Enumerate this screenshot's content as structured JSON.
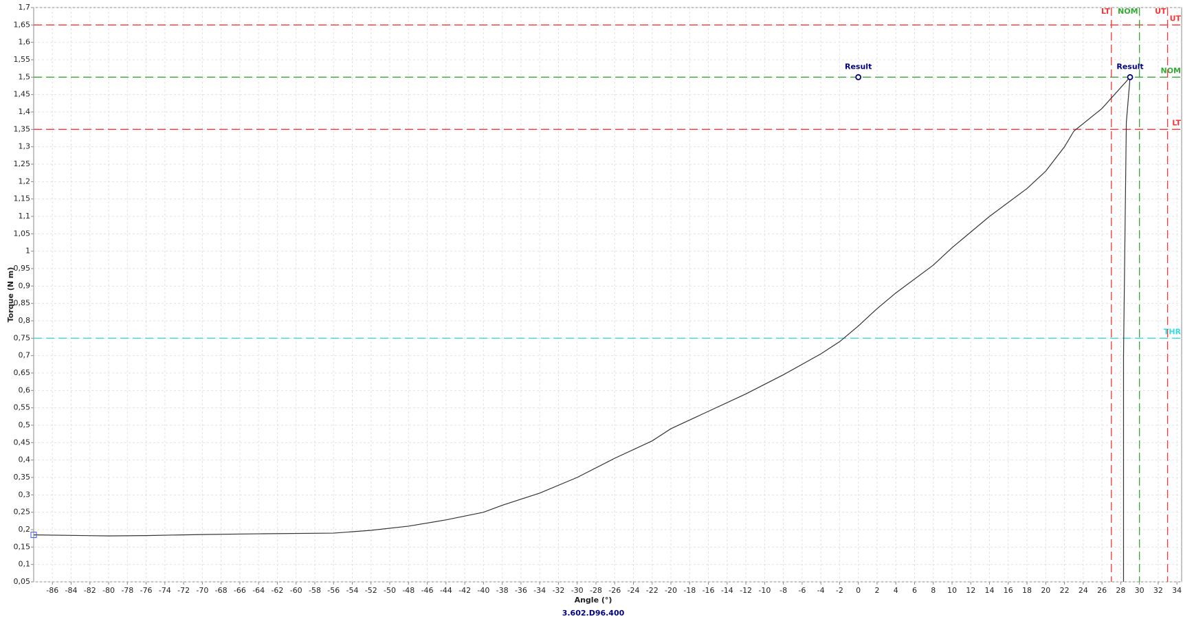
{
  "chart_data": {
    "type": "line",
    "x_label": "Angle (°)",
    "y_label": "Torque (N m)",
    "footer": "3.602.D96.400",
    "xlim": [
      -88,
      34.5
    ],
    "ylim": [
      0.05,
      1.7
    ],
    "xticks": [
      -86,
      -84,
      -82,
      -80,
      -78,
      -76,
      -74,
      -72,
      -70,
      -68,
      -66,
      -64,
      -62,
      -60,
      -58,
      -56,
      -54,
      -52,
      -50,
      -48,
      -46,
      -44,
      -42,
      -40,
      -38,
      -36,
      -34,
      -32,
      -30,
      -28,
      -26,
      -24,
      -22,
      -20,
      -18,
      -16,
      -14,
      -12,
      -10,
      -8,
      -6,
      -4,
      -2,
      0,
      2,
      4,
      6,
      8,
      10,
      12,
      14,
      16,
      18,
      20,
      22,
      24,
      26,
      28,
      30,
      32,
      34
    ],
    "yticks": [
      {
        "value": 0.05,
        "label": "0,05"
      },
      {
        "value": 0.1,
        "label": "0,1"
      },
      {
        "value": 0.15,
        "label": "0,15"
      },
      {
        "value": 0.2,
        "label": "0,2"
      },
      {
        "value": 0.25,
        "label": "0,25"
      },
      {
        "value": 0.3,
        "label": "0,3"
      },
      {
        "value": 0.35,
        "label": "0,35"
      },
      {
        "value": 0.4,
        "label": "0,4"
      },
      {
        "value": 0.45,
        "label": "0,45"
      },
      {
        "value": 0.5,
        "label": "0,5"
      },
      {
        "value": 0.55,
        "label": "0,55"
      },
      {
        "value": 0.6,
        "label": "0,6"
      },
      {
        "value": 0.65,
        "label": "0,65"
      },
      {
        "value": 0.7,
        "label": "0,7"
      },
      {
        "value": 0.75,
        "label": "0,75"
      },
      {
        "value": 0.8,
        "label": "0,8"
      },
      {
        "value": 0.85,
        "label": "0,85"
      },
      {
        "value": 0.9,
        "label": "0,9"
      },
      {
        "value": 0.95,
        "label": "0,95"
      },
      {
        "value": 1,
        "label": "1"
      },
      {
        "value": 1.05,
        "label": "1,05"
      },
      {
        "value": 1.1,
        "label": "1,1"
      },
      {
        "value": 1.15,
        "label": "1,15"
      },
      {
        "value": 1.2,
        "label": "1,2"
      },
      {
        "value": 1.25,
        "label": "1,25"
      },
      {
        "value": 1.3,
        "label": "1,3"
      },
      {
        "value": 1.35,
        "label": "1,35"
      },
      {
        "value": 1.4,
        "label": "1,4"
      },
      {
        "value": 1.45,
        "label": "1,45"
      },
      {
        "value": 1.5,
        "label": "1,5"
      },
      {
        "value": 1.55,
        "label": "1,55"
      },
      {
        "value": 1.6,
        "label": "1,6"
      },
      {
        "value": 1.65,
        "label": "1,65"
      },
      {
        "value": 1.7,
        "label": "1,7"
      }
    ],
    "grid": true,
    "series": [
      {
        "color": "#333333",
        "x": [
          -88,
          -80,
          -76,
          -70,
          -64,
          -56,
          -52,
          -48,
          -44,
          -40,
          -38,
          -34,
          -30,
          -26,
          -22,
          -20,
          -16,
          -12,
          -8,
          -4,
          -2,
          0,
          2,
          4,
          8,
          10,
          14,
          18,
          20,
          22,
          23,
          26,
          29,
          28.6,
          28.3,
          28.3
        ],
        "values": [
          0.185,
          0.182,
          0.183,
          0.186,
          0.188,
          0.19,
          0.198,
          0.21,
          0.228,
          0.25,
          0.27,
          0.305,
          0.35,
          0.405,
          0.455,
          0.49,
          0.54,
          0.59,
          0.645,
          0.705,
          0.74,
          0.785,
          0.835,
          0.88,
          0.96,
          1.01,
          1.1,
          1.18,
          1.23,
          1.3,
          1.345,
          1.41,
          1.5,
          1.37,
          0.7,
          0.05
        ]
      }
    ],
    "reference_lines": [
      {
        "label": "UT",
        "axis": "y",
        "value": 1.65,
        "color": "#ff3333"
      },
      {
        "label": "NOM",
        "axis": "y",
        "value": 1.5,
        "color": "#33aa33"
      },
      {
        "label": "LT",
        "axis": "y",
        "value": 1.35,
        "color": "#ff3333"
      },
      {
        "label": "THR",
        "axis": "y",
        "value": 0.75,
        "color": "#33dddd"
      },
      {
        "label": "LT",
        "axis": "x",
        "value": 27,
        "color": "#ff3333"
      },
      {
        "label": "NOM",
        "axis": "x",
        "value": 30,
        "color": "#33aa33"
      },
      {
        "label": "UT",
        "axis": "x",
        "value": 33,
        "color": "#ff3333"
      }
    ],
    "markers": [
      {
        "label": "Result",
        "x": 0,
        "y": 1.5,
        "color": "#000080"
      },
      {
        "label": "Result",
        "x": 29,
        "y": 1.5,
        "color": "#000080"
      }
    ]
  }
}
